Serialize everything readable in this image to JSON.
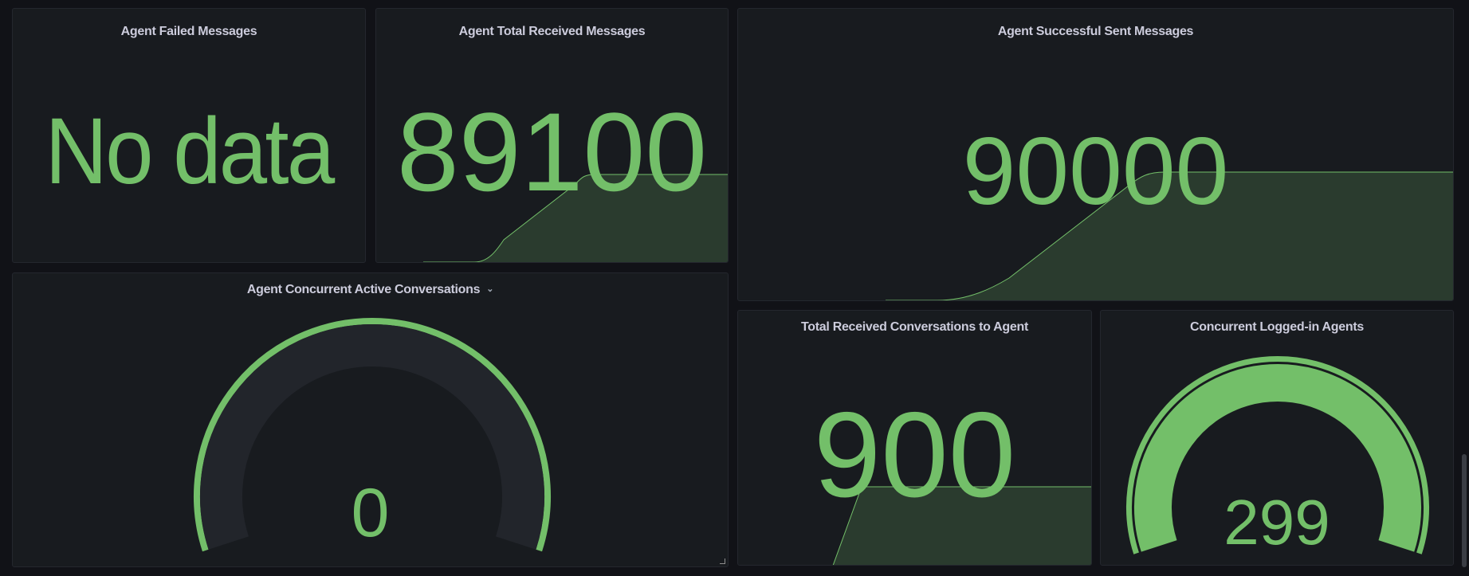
{
  "colors": {
    "background": "#111217",
    "panel": "#181b1f",
    "value_green": "#73bf69",
    "gauge_track": "#22252b",
    "title": "#ccccdc"
  },
  "panels": {
    "failed_messages": {
      "title": "Agent Failed Messages",
      "value": "No data"
    },
    "total_received_messages": {
      "title": "Agent Total Received Messages",
      "value": "89100",
      "sparkline": true
    },
    "successful_sent_messages": {
      "title": "Agent Successful Sent Messages",
      "value": "90000",
      "sparkline": true
    },
    "concurrent_active_conversations": {
      "title": "Agent Concurrent Active Conversations",
      "menu_icon": "chevron-down-icon",
      "value": "0",
      "gauge_fill_fraction": 0
    },
    "total_received_conversations": {
      "title": "Total Received Conversations to Agent",
      "value": "900",
      "sparkline": true
    },
    "concurrent_logged_in_agents": {
      "title": "Concurrent Logged-in Agents",
      "value": "299",
      "gauge_fill_fraction": 1
    }
  }
}
